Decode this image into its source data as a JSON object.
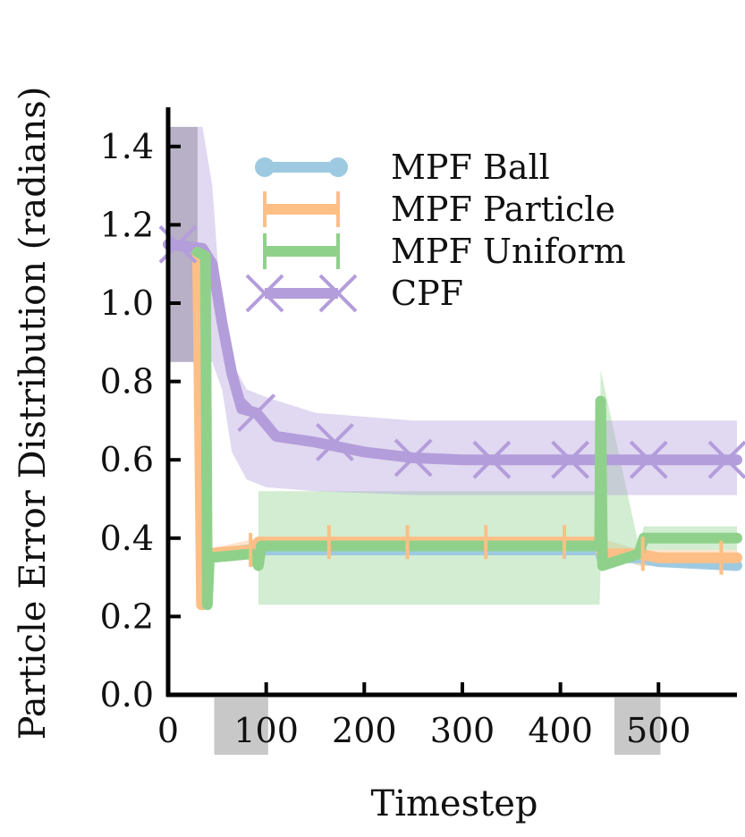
{
  "chart_data": {
    "type": "line",
    "xlabel": "Timestep",
    "ylabel": "Particle Error Distribution (radians)",
    "xlim": [
      0,
      580
    ],
    "ylim": [
      0,
      1.5
    ],
    "xticks": [
      0,
      100,
      200,
      300,
      400,
      500
    ],
    "yticks": [
      0.0,
      0.2,
      0.4,
      0.6,
      0.8,
      1.0,
      1.2,
      1.4
    ],
    "xtick_labels": [
      "0",
      "100",
      "200",
      "300",
      "400",
      "500"
    ],
    "ytick_labels": [
      "0.0",
      "0.2",
      "0.4",
      "0.6",
      "0.8",
      "1.0",
      "1.2",
      "1.4"
    ],
    "legend_position": "top-center",
    "grid": false,
    "highlight_regions": [
      {
        "axis": "y-left",
        "x": [
          0,
          30
        ],
        "y": [
          0.85,
          1.45
        ],
        "color": "#b9bcb8"
      },
      {
        "axis": "x-bottom",
        "x": [
          47,
          102
        ],
        "color": "#c8c8c8"
      },
      {
        "axis": "x-bottom",
        "x": [
          455,
          502
        ],
        "color": "#c8c8c8"
      }
    ],
    "series": [
      {
        "name": "MPF Ball",
        "color": "#9ecae1",
        "marker": "circle",
        "line": [
          [
            30,
            1.13
          ],
          [
            33,
            0.75
          ],
          [
            35,
            0.23
          ],
          [
            36,
            0.24
          ],
          [
            38,
            0.35
          ],
          [
            80,
            0.37
          ],
          [
            90,
            0.37
          ],
          [
            200,
            0.37
          ],
          [
            440,
            0.37
          ],
          [
            442,
            0.35
          ],
          [
            480,
            0.35
          ],
          [
            500,
            0.34
          ],
          [
            580,
            0.33
          ]
        ],
        "band": {
          "x": [
            38,
            90,
            440,
            480,
            580
          ],
          "upper": [
            0.37,
            0.38,
            0.38,
            0.35,
            0.34
          ],
          "lower": [
            0.35,
            0.36,
            0.36,
            0.33,
            0.32
          ]
        },
        "markers_x": [],
        "markers_y": []
      },
      {
        "name": "MPF Particle",
        "color": "#fdbf86",
        "marker": "vline",
        "line": [
          [
            30,
            1.13
          ],
          [
            32,
            0.7
          ],
          [
            34,
            0.23
          ],
          [
            36,
            0.36
          ],
          [
            85,
            0.37
          ],
          [
            92,
            0.39
          ],
          [
            440,
            0.39
          ],
          [
            442,
            0.36
          ],
          [
            480,
            0.36
          ],
          [
            500,
            0.35
          ],
          [
            580,
            0.35
          ]
        ],
        "band": {
          "x": [
            36,
            92,
            440,
            480,
            580
          ],
          "upper": [
            0.37,
            0.4,
            0.4,
            0.37,
            0.37
          ],
          "lower": [
            0.35,
            0.37,
            0.37,
            0.33,
            0.33
          ]
        },
        "markers_x": [
          84,
          164,
          244,
          324,
          404,
          484,
          564
        ],
        "markers_y": [
          0.37,
          0.39,
          0.39,
          0.39,
          0.39,
          0.36,
          0.35
        ]
      },
      {
        "name": "MPF Uniform",
        "color": "#8fd18b",
        "marker": "vline",
        "line": [
          [
            30,
            1.13
          ],
          [
            38,
            1.12
          ],
          [
            40,
            0.23
          ],
          [
            42,
            0.35
          ],
          [
            85,
            0.36
          ],
          [
            92,
            0.33
          ],
          [
            95,
            0.38
          ],
          [
            440,
            0.38
          ],
          [
            441,
            0.75
          ],
          [
            443,
            0.33
          ],
          [
            480,
            0.36
          ],
          [
            485,
            0.4
          ],
          [
            580,
            0.4
          ]
        ],
        "band": {
          "x": [
            92,
            440,
            441,
            480,
            485,
            580
          ],
          "upper": [
            0.52,
            0.52,
            0.83,
            0.38,
            0.43,
            0.43
          ],
          "lower": [
            0.23,
            0.23,
            0.33,
            0.34,
            0.37,
            0.37
          ]
        },
        "markers_x": [],
        "markers_y": []
      },
      {
        "name": "CPF",
        "color": "#b39ddb",
        "marker": "x",
        "line": [
          [
            0,
            1.15
          ],
          [
            35,
            1.14
          ],
          [
            45,
            1.1
          ],
          [
            55,
            0.95
          ],
          [
            65,
            0.82
          ],
          [
            75,
            0.73
          ],
          [
            90,
            0.72
          ],
          [
            110,
            0.66
          ],
          [
            150,
            0.645
          ],
          [
            200,
            0.62
          ],
          [
            250,
            0.605
          ],
          [
            300,
            0.6
          ],
          [
            580,
            0.6
          ]
        ],
        "band": {
          "x": [
            0,
            35,
            45,
            55,
            65,
            80,
            100,
            150,
            200,
            250,
            300,
            580
          ],
          "upper": [
            1.45,
            1.45,
            1.3,
            0.95,
            0.85,
            0.78,
            0.76,
            0.72,
            0.71,
            0.7,
            0.7,
            0.7
          ],
          "lower": [
            0.85,
            0.85,
            0.85,
            0.78,
            0.62,
            0.55,
            0.53,
            0.52,
            0.515,
            0.51,
            0.51,
            0.51
          ]
        },
        "markers_x": [
          10,
          90,
          170,
          250,
          330,
          410,
          490,
          570
        ],
        "markers_y": [
          1.15,
          0.72,
          0.645,
          0.605,
          0.6,
          0.6,
          0.6,
          0.6
        ]
      }
    ]
  }
}
